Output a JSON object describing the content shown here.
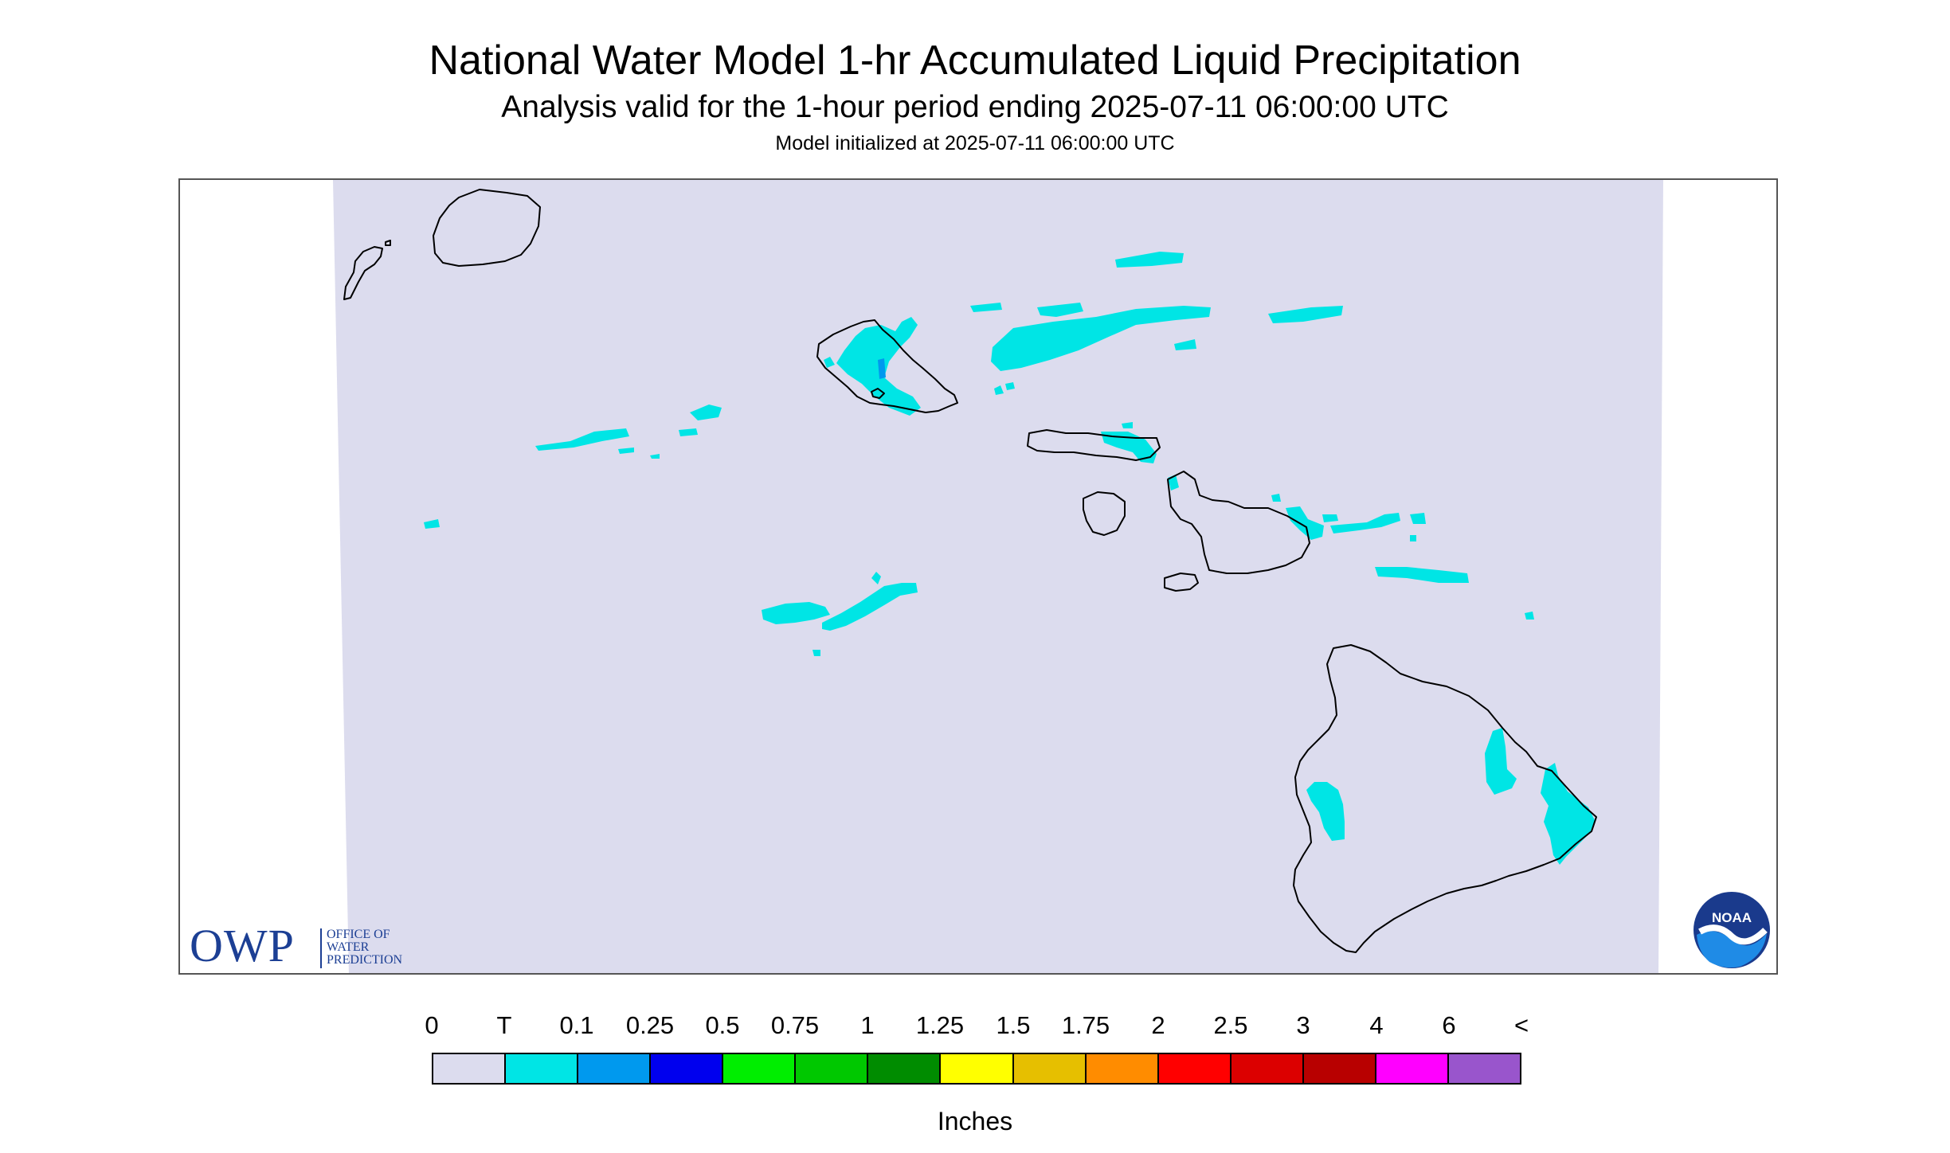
{
  "header": {
    "title": "National Water Model 1-hr Accumulated Liquid Precipitation",
    "subtitle": "Analysis valid for the 1-hour period ending 2025-07-11 06:00:00 UTC",
    "init": "Model initialized at 2025-07-11 06:00:00 UTC"
  },
  "logos": {
    "owp_big": "OWP",
    "owp_line1": "OFFICE OF",
    "owp_line2": "WATER",
    "owp_line3": "PREDICTION",
    "noaa": "NOAA"
  },
  "colors": {
    "background_domain": "#dcdcee",
    "trace": "#00e5e5",
    "light_blue": "#0099ee",
    "outline": "#000000"
  },
  "legend": {
    "units": "Inches",
    "labels": [
      "0",
      "T",
      "0.1",
      "0.25",
      "0.5",
      "0.75",
      "1",
      "1.25",
      "1.5",
      "1.75",
      "2",
      "2.5",
      "3",
      "4",
      "6",
      "<"
    ],
    "colors": [
      "#dcdcee",
      "#00e5e5",
      "#0099ee",
      "#0000ee",
      "#00ee00",
      "#00c800",
      "#008c00",
      "#ffff00",
      "#e6bf00",
      "#ff8c00",
      "#ff0000",
      "#dc0000",
      "#b80000",
      "#ff00ff",
      "#9955cc"
    ]
  }
}
